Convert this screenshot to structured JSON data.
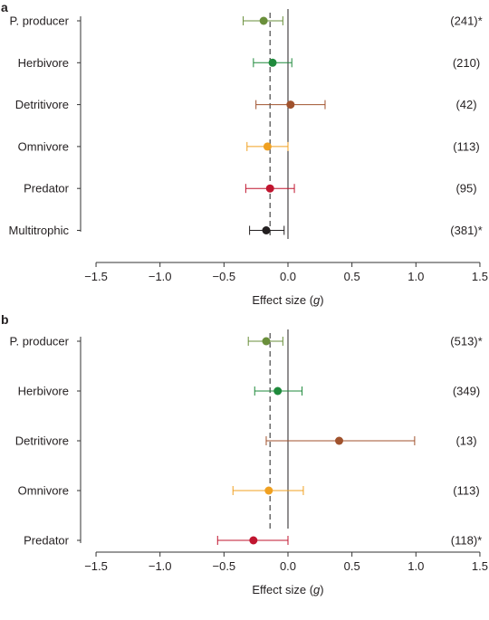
{
  "chart_data": [
    {
      "type": "forest",
      "panel": "a",
      "xlabel_main": "Effect size (",
      "xlabel_var": "g",
      "xlabel_end": ")",
      "xlim": [
        -1.5,
        1.5
      ],
      "xticks": [
        "−1.5",
        "−1.0",
        "−0.5",
        "0.0",
        "0.5",
        "1.0",
        "1.5"
      ],
      "xtick_values": [
        -1.5,
        -1.0,
        -0.5,
        0.0,
        0.5,
        1.0,
        1.5
      ],
      "reference_line": 0.0,
      "mean_line": -0.14,
      "rows": [
        {
          "label": "P. producer",
          "estimate": -0.19,
          "lower": -0.35,
          "upper": -0.04,
          "n": "(241)*",
          "color": "#6a8f3b"
        },
        {
          "label": "Herbivore",
          "estimate": -0.12,
          "lower": -0.27,
          "upper": 0.03,
          "n": "(210)",
          "color": "#1f8a3c"
        },
        {
          "label": "Detritivore",
          "estimate": 0.02,
          "lower": -0.25,
          "upper": 0.29,
          "n": "(42)",
          "color": "#a0522d"
        },
        {
          "label": "Omnivore",
          "estimate": -0.16,
          "lower": -0.32,
          "upper": 0.0,
          "n": "(113)",
          "color": "#f0a020"
        },
        {
          "label": "Predator",
          "estimate": -0.14,
          "lower": -0.33,
          "upper": 0.05,
          "n": "(95)",
          "color": "#c0152f"
        },
        {
          "label": "Multitrophic",
          "estimate": -0.17,
          "lower": -0.3,
          "upper": -0.03,
          "n": "(381)*",
          "color": "#231f20"
        }
      ]
    },
    {
      "type": "forest",
      "panel": "b",
      "xlabel_main": "Effect size (",
      "xlabel_var": "g",
      "xlabel_end": ")",
      "xlim": [
        -1.5,
        1.5
      ],
      "xticks": [
        "−1.5",
        "−1.0",
        "−0.5",
        "0.0",
        "0.5",
        "1.0",
        "1.5"
      ],
      "xtick_values": [
        -1.5,
        -1.0,
        -0.5,
        0.0,
        0.5,
        1.0,
        1.5
      ],
      "reference_line": 0.0,
      "mean_line": -0.14,
      "rows": [
        {
          "label": "P. producer",
          "estimate": -0.17,
          "lower": -0.31,
          "upper": -0.04,
          "n": "(513)*",
          "color": "#6a8f3b"
        },
        {
          "label": "Herbivore",
          "estimate": -0.08,
          "lower": -0.26,
          "upper": 0.11,
          "n": "(349)",
          "color": "#1f8a3c"
        },
        {
          "label": "Detritivore",
          "estimate": 0.4,
          "lower": -0.17,
          "upper": 0.99,
          "n": "(13)",
          "color": "#a0522d"
        },
        {
          "label": "Omnivore",
          "estimate": -0.15,
          "lower": -0.43,
          "upper": 0.12,
          "n": "(113)",
          "color": "#f0a020"
        },
        {
          "label": "Predator",
          "estimate": -0.27,
          "lower": -0.55,
          "upper": 0.0,
          "n": "(118)*",
          "color": "#c0152f"
        }
      ]
    }
  ]
}
